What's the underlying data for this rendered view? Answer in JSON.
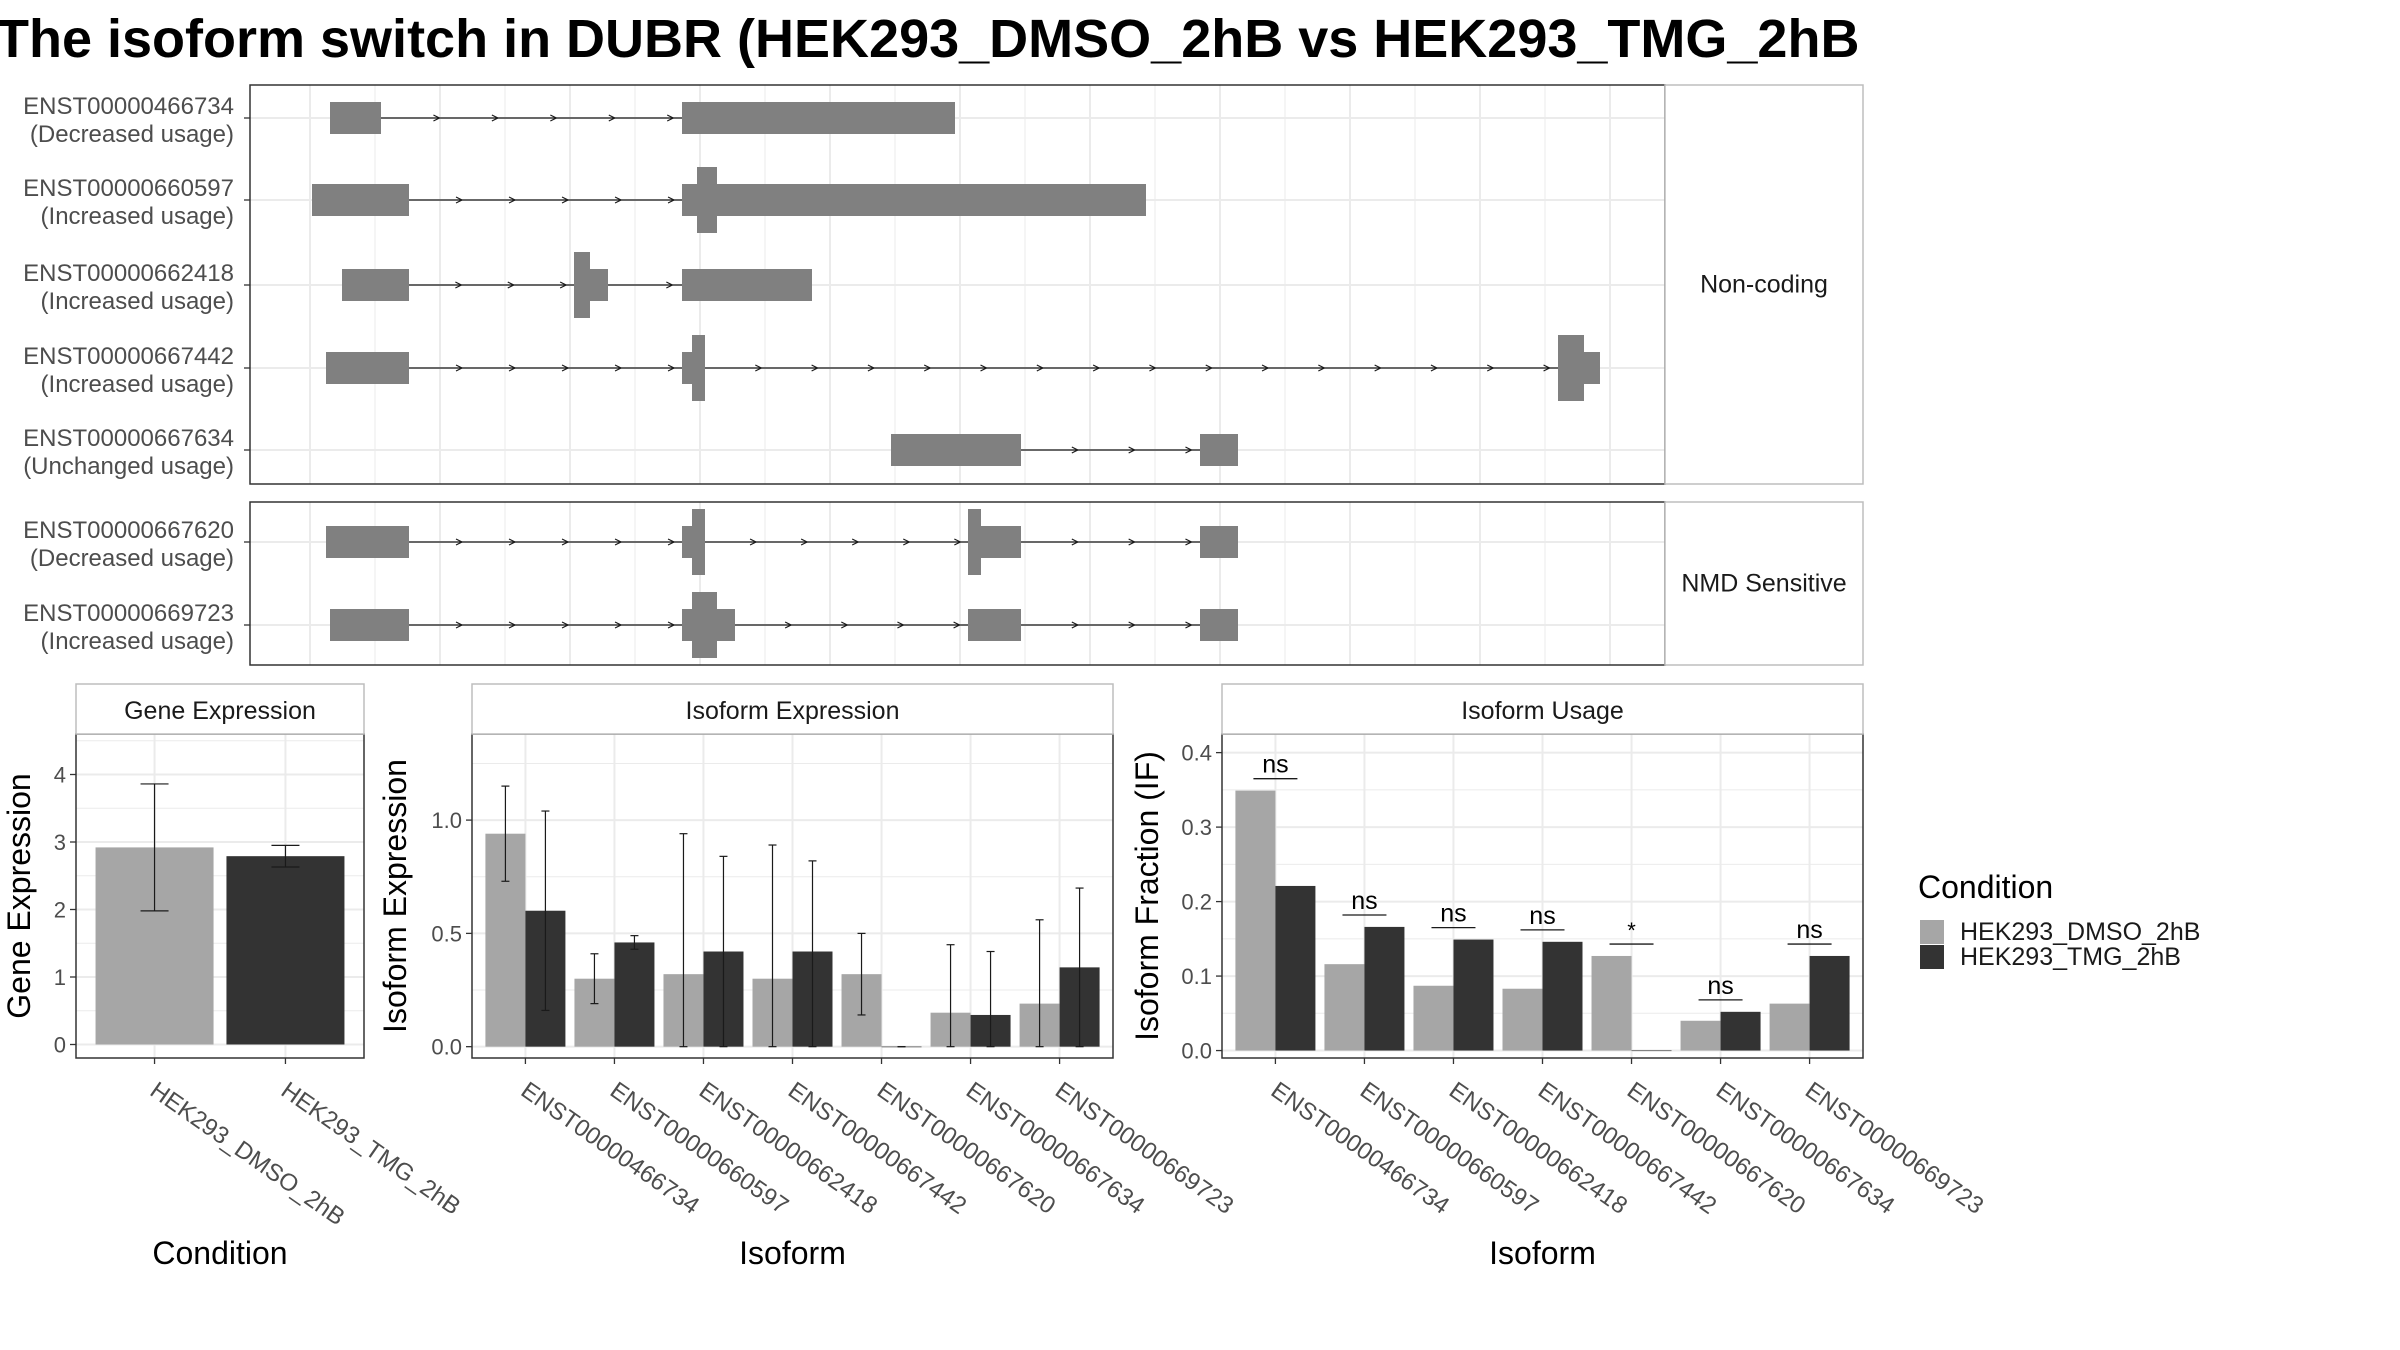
{
  "title": "The isoform switch in DUBR (HEK293_DMSO_2hB vs HEK293_TMG_2hB",
  "colors": {
    "dmso": "#a6a6a6",
    "tmg": "#333333",
    "exon": "#808080",
    "grid": "#ebebeb",
    "panel_border": "#333333",
    "strip_border": "#bdbdbd",
    "strip_text": "#1a1a1a",
    "axis_text": "#4d4d4d"
  },
  "structure": {
    "groups": [
      {
        "label": "Non-coding",
        "transcripts": [
          {
            "id": "ENST00000466734",
            "usage": "(Decreased usage)"
          },
          {
            "id": "ENST00000660597",
            "usage": "(Increased usage)"
          },
          {
            "id": "ENST00000662418",
            "usage": "(Increased usage)"
          },
          {
            "id": "ENST00000667442",
            "usage": "(Increased usage)"
          },
          {
            "id": "ENST00000667634",
            "usage": "(Unchanged usage)"
          }
        ]
      },
      {
        "label": "NMD Sensitive",
        "transcripts": [
          {
            "id": "ENST00000667620",
            "usage": "(Decreased usage)"
          },
          {
            "id": "ENST00000669723",
            "usage": "(Increased usage)"
          }
        ]
      }
    ]
  },
  "legend": {
    "title": "Condition",
    "entries": [
      "HEK293_DMSO_2hB",
      "HEK293_TMG_2hB"
    ]
  },
  "chart_data": [
    {
      "type": "bar",
      "title": "Gene Expression",
      "xlabel": "Condition",
      "ylabel": "Gene Expression",
      "ylim": [
        -0.2,
        4.6
      ],
      "yticks": [
        0,
        1,
        2,
        3,
        4
      ],
      "categories": [
        "HEK293_DMSO_2hB",
        "HEK293_TMG_2hB"
      ],
      "values": [
        2.92,
        2.79
      ],
      "error_low": [
        1.98,
        2.63
      ],
      "error_high": [
        3.86,
        2.95
      ]
    },
    {
      "type": "bar",
      "title": "Isoform Expression",
      "xlabel": "Isoform",
      "ylabel": "Isoform Expression",
      "ylim": [
        -0.05,
        1.38
      ],
      "yticks": [
        0.0,
        0.5,
        1.0
      ],
      "categories": [
        "ENST00000466734",
        "ENST00000660597",
        "ENST00000662418",
        "ENST00000667442",
        "ENST00000667620",
        "ENST00000667634",
        "ENST00000669723"
      ],
      "series": [
        {
          "name": "HEK293_DMSO_2hB",
          "values": [
            0.94,
            0.3,
            0.32,
            0.3,
            0.32,
            0.15,
            0.19
          ],
          "error_low": [
            0.73,
            0.19,
            0.0,
            0.0,
            0.14,
            0.0,
            0.0
          ],
          "error_high": [
            1.15,
            0.41,
            0.94,
            0.89,
            0.5,
            0.45,
            0.56
          ]
        },
        {
          "name": "HEK293_TMG_2hB",
          "values": [
            0.6,
            0.46,
            0.42,
            0.42,
            0.0,
            0.14,
            0.35
          ],
          "error_low": [
            0.16,
            0.43,
            0.0,
            0.0,
            0.0,
            0.0,
            0.0
          ],
          "error_high": [
            1.04,
            0.49,
            0.84,
            0.82,
            0.0,
            0.42,
            0.7
          ]
        }
      ]
    },
    {
      "type": "bar",
      "title": "Isoform Usage",
      "xlabel": "Isoform",
      "ylabel": "Isoform Fraction (IF)",
      "ylim": [
        -0.01,
        0.425
      ],
      "yticks": [
        0.0,
        0.1,
        0.2,
        0.3,
        0.4
      ],
      "categories": [
        "ENST00000466734",
        "ENST00000660597",
        "ENST00000662418",
        "ENST00000667442",
        "ENST00000667620",
        "ENST00000667634",
        "ENST00000669723"
      ],
      "series": [
        {
          "name": "HEK293_DMSO_2hB",
          "values": [
            0.349,
            0.116,
            0.087,
            0.083,
            0.127,
            0.04,
            0.063
          ]
        },
        {
          "name": "HEK293_TMG_2hB",
          "values": [
            0.221,
            0.166,
            0.149,
            0.146,
            0.0,
            0.052,
            0.127
          ]
        }
      ],
      "significance": [
        "ns",
        "ns",
        "ns",
        "ns",
        "*",
        "ns",
        "ns"
      ],
      "significance_y": [
        0.365,
        0.182,
        0.165,
        0.162,
        0.143,
        0.068,
        0.143
      ]
    }
  ]
}
